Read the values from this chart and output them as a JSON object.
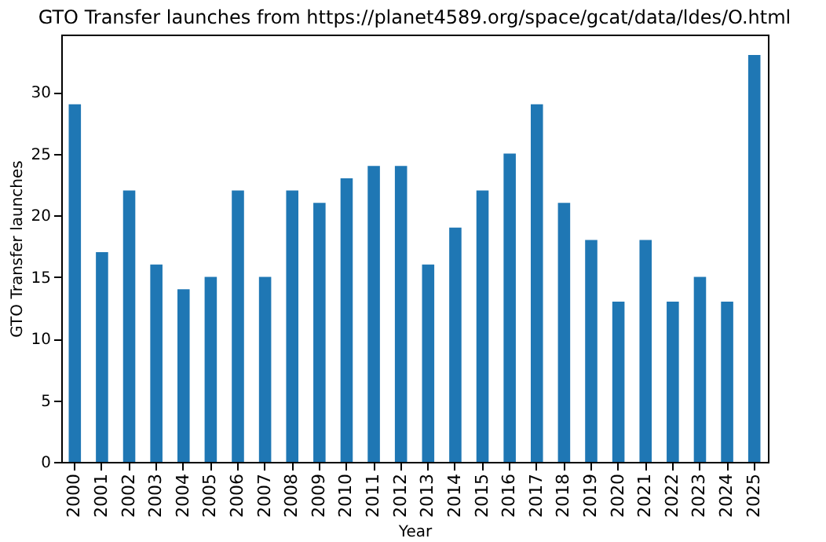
{
  "chart_data": {
    "type": "bar",
    "title": "GTO Transfer launches from https://planet4589.org/space/gcat/data/ldes/O.html",
    "xlabel": "Year",
    "ylabel": "GTO Transfer launches",
    "categories": [
      "2000",
      "2001",
      "2002",
      "2003",
      "2004",
      "2005",
      "2006",
      "2007",
      "2008",
      "2009",
      "2010",
      "2011",
      "2012",
      "2013",
      "2014",
      "2015",
      "2016",
      "2017",
      "2018",
      "2019",
      "2020",
      "2021",
      "2022",
      "2023",
      "2024",
      "2025"
    ],
    "values": [
      29,
      17,
      22,
      16,
      14,
      15,
      22,
      15,
      22,
      21,
      23,
      24,
      24,
      16,
      19,
      22,
      25,
      29,
      21,
      18,
      13,
      18,
      13,
      15,
      13,
      33
    ],
    "color": "#1f77b4",
    "ylim": [
      0,
      34.65
    ],
    "yticks": [
      0,
      5,
      10,
      15,
      20,
      25,
      30
    ],
    "grid": false
  }
}
